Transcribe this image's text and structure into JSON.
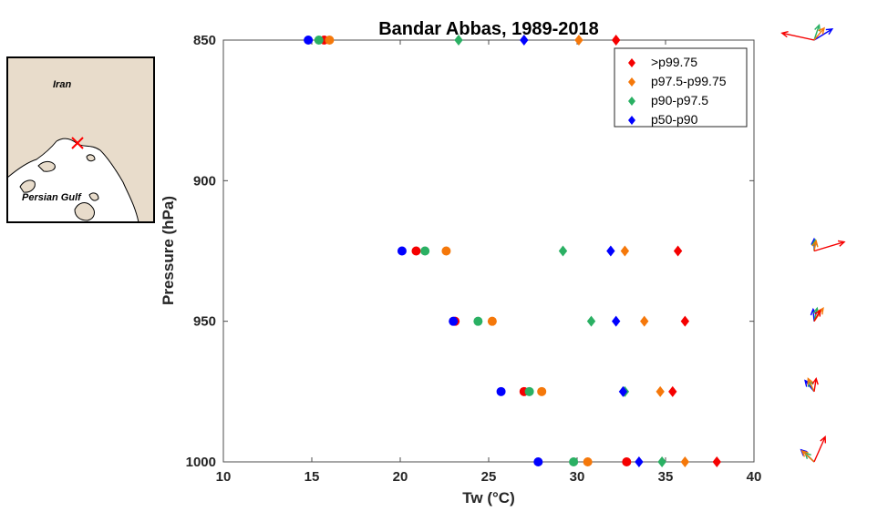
{
  "inset_map": {
    "labels": [
      "Iran",
      "Persian Gulf"
    ],
    "colors": {
      "land": "#e8dccb",
      "border": "#000000",
      "marker": "#ff0000"
    }
  },
  "legend": {
    "placement": "top-right",
    "entries": [
      ">p99.75",
      "p97.5-p99.75",
      "p90-p97.5",
      "p50-p90"
    ]
  },
  "colors": {
    "red": "#f50000",
    "orange": "#f5780a",
    "green": "#2ab063",
    "blue": "#0000ff"
  },
  "chart_data": {
    "type": "scatter",
    "title": "Bandar Abbas, 1989-2018",
    "xlabel": "Tw (°C)",
    "ylabel": "Pressure (hPa)",
    "xlim": [
      10,
      40
    ],
    "ylim": [
      850,
      1000
    ],
    "y_reversed": true,
    "grid": false,
    "xticks": [
      "10",
      "15",
      "20",
      "25",
      "30",
      "35",
      "40"
    ],
    "yticks": [
      "850",
      "900",
      "950",
      "1000"
    ],
    "levels": [
      850,
      925,
      950,
      975,
      1000
    ],
    "series": [
      {
        "name": ">p99.75",
        "color": "red",
        "circle": [
          15.7,
          20.9,
          23.1,
          27.0,
          32.8
        ],
        "diamond": [
          32.2,
          35.7,
          36.1,
          35.4,
          37.9
        ]
      },
      {
        "name": "p97.5-p99.75",
        "color": "orange",
        "circle": [
          16.0,
          22.6,
          25.2,
          28.0,
          30.6
        ],
        "diamond": [
          30.1,
          32.7,
          33.8,
          34.7,
          36.1
        ]
      },
      {
        "name": "p90-p97.5",
        "color": "green",
        "circle": [
          15.4,
          21.4,
          24.4,
          27.3,
          29.8
        ],
        "diamond": [
          23.3,
          29.2,
          30.8,
          32.7,
          34.8
        ]
      },
      {
        "name": "p50-p90",
        "color": "blue",
        "circle": [
          14.8,
          20.1,
          23.0,
          25.7,
          27.8
        ],
        "diamond": [
          27.0,
          31.9,
          32.2,
          32.6,
          33.5
        ]
      }
    ],
    "wind_vectors": [
      {
        "level": 850,
        "vectors": [
          {
            "color": "red",
            "u": -1.6,
            "v": 0.35
          },
          {
            "color": "orange",
            "u": 0.5,
            "v": 0.6
          },
          {
            "color": "green",
            "u": 0.25,
            "v": 0.75
          },
          {
            "color": "blue",
            "u": 0.9,
            "v": 0.55
          }
        ]
      },
      {
        "level": 925,
        "vectors": [
          {
            "color": "red",
            "u": 1.5,
            "v": 0.45
          },
          {
            "color": "orange",
            "u": 0.1,
            "v": 0.5
          },
          {
            "color": "green",
            "u": 0.05,
            "v": 0.55
          },
          {
            "color": "blue",
            "u": 0.0,
            "v": 0.6
          }
        ]
      },
      {
        "level": 950,
        "vectors": [
          {
            "color": "red",
            "u": 0.3,
            "v": 0.55
          },
          {
            "color": "orange",
            "u": 0.45,
            "v": 0.65
          },
          {
            "color": "green",
            "u": 0.15,
            "v": 0.65
          },
          {
            "color": "blue",
            "u": -0.05,
            "v": 0.6
          }
        ]
      },
      {
        "level": 975,
        "vectors": [
          {
            "color": "red",
            "u": 0.1,
            "v": 0.65
          },
          {
            "color": "orange",
            "u": -0.3,
            "v": 0.65
          },
          {
            "color": "green",
            "u": -0.3,
            "v": 0.55
          },
          {
            "color": "blue",
            "u": -0.45,
            "v": 0.55
          }
        ]
      },
      {
        "level": 1000,
        "vectors": [
          {
            "color": "red",
            "u": 0.55,
            "v": 1.25
          },
          {
            "color": "orange",
            "u": -0.6,
            "v": 0.55
          },
          {
            "color": "green",
            "u": -0.45,
            "v": 0.45
          },
          {
            "color": "blue",
            "u": -0.65,
            "v": 0.6
          }
        ]
      }
    ]
  }
}
